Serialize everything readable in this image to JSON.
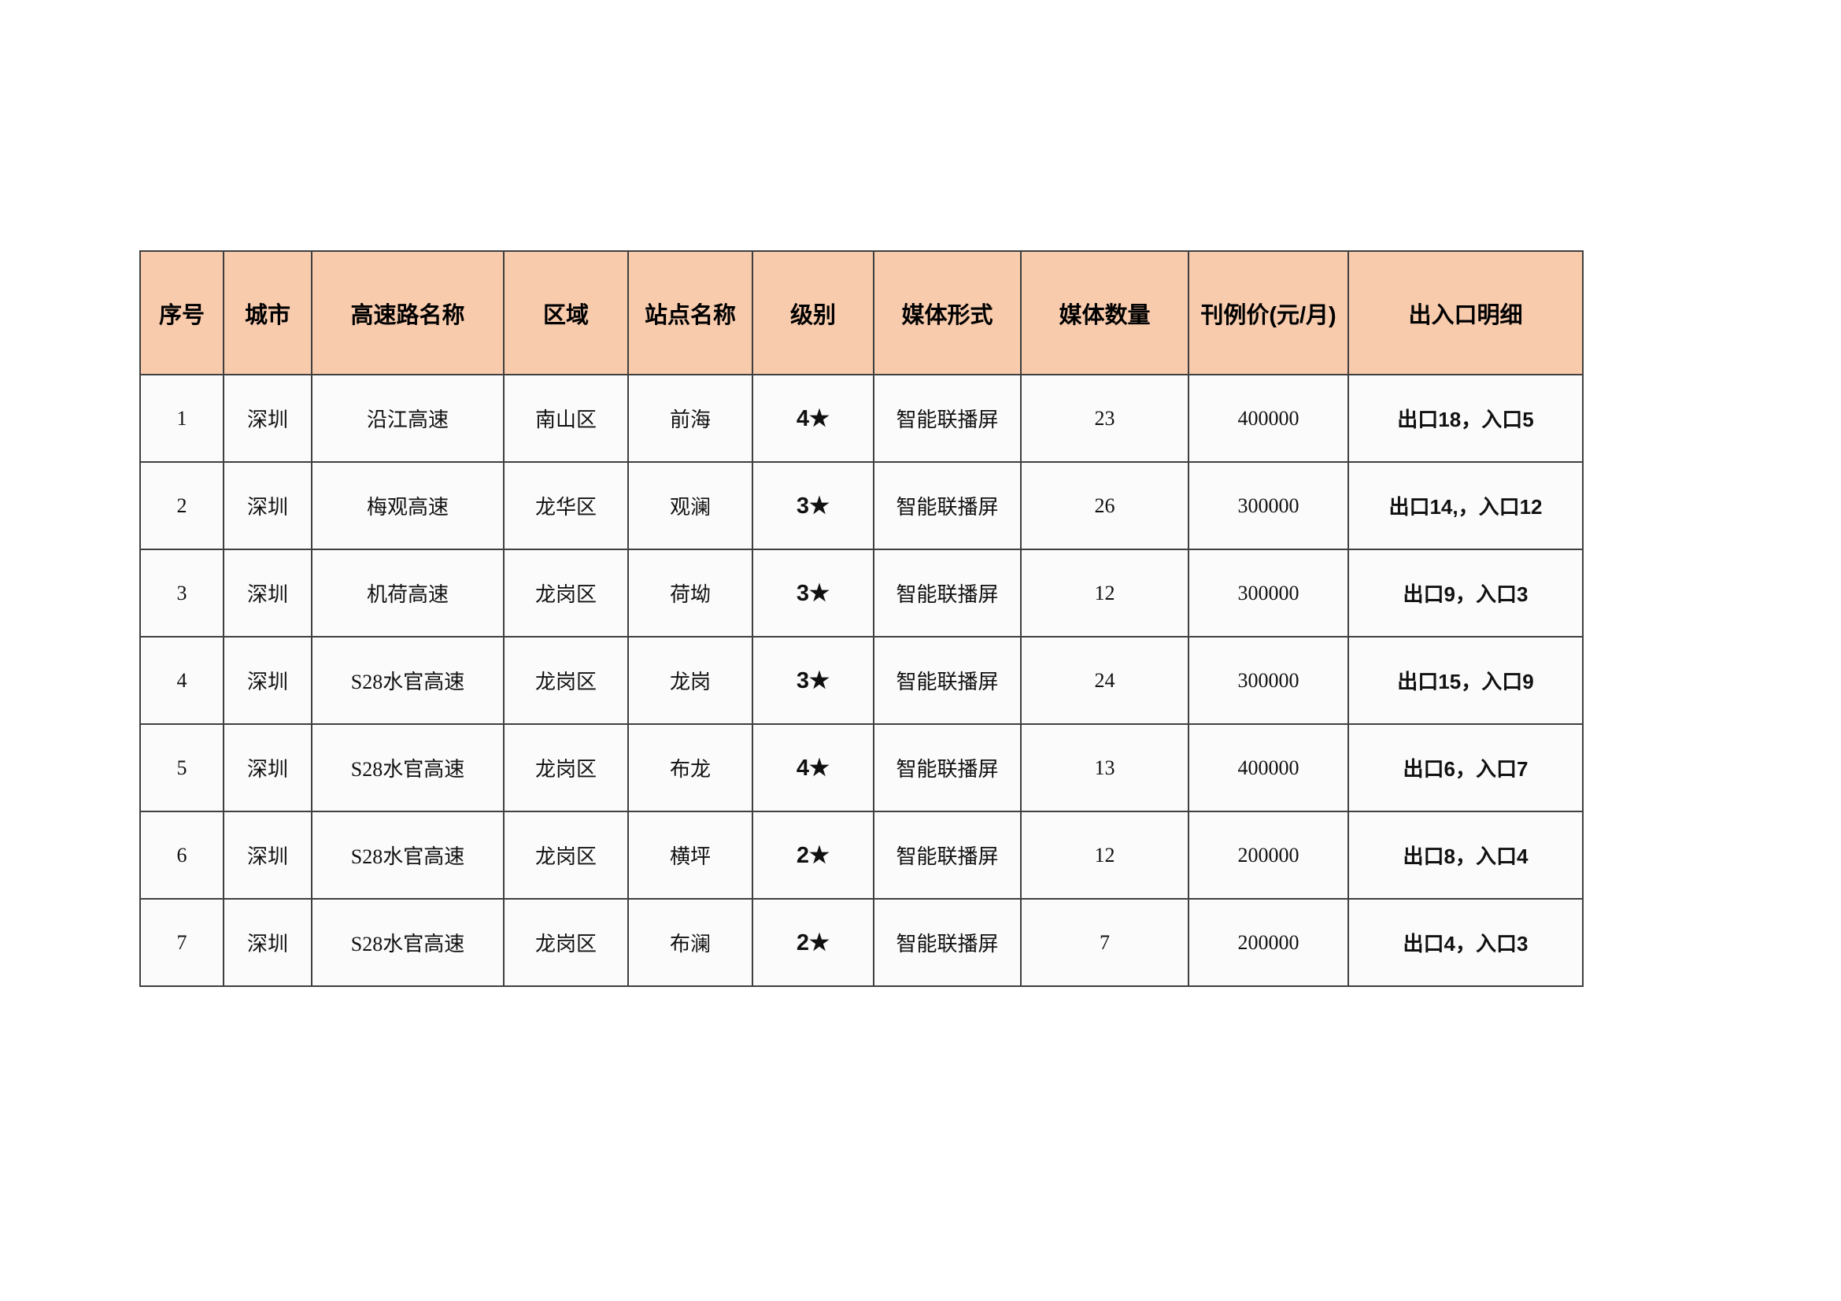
{
  "table": {
    "header_bg": "#F8CBAD",
    "border_color": "#3f3f3f",
    "columns": [
      "序号",
      "城市",
      "高速路名称",
      "区域",
      "站点名称",
      "级别",
      "媒体形式",
      "媒体数量",
      "刊例价(元/月)",
      "出入口明细"
    ],
    "rows": [
      [
        "1",
        "深圳",
        "沿江高速",
        "南山区",
        "前海",
        "4★",
        "智能联播屏",
        "23",
        "400000",
        "出口18，入口5"
      ],
      [
        "2",
        "深圳",
        "梅观高速",
        "龙华区",
        "观澜",
        "3★",
        "智能联播屏",
        "26",
        "300000",
        "出口14,，入口12"
      ],
      [
        "3",
        "深圳",
        "机荷高速",
        "龙岗区",
        "荷坳",
        "3★",
        "智能联播屏",
        "12",
        "300000",
        "出口9，入口3"
      ],
      [
        "4",
        "深圳",
        "S28水官高速",
        "龙岗区",
        "龙岗",
        "3★",
        "智能联播屏",
        "24",
        "300000",
        "出口15，入口9"
      ],
      [
        "5",
        "深圳",
        "S28水官高速",
        "龙岗区",
        "布龙",
        "4★",
        "智能联播屏",
        "13",
        "400000",
        "出口6，入口7"
      ],
      [
        "6",
        "深圳",
        "S28水官高速",
        "龙岗区",
        "横坪",
        "2★",
        "智能联播屏",
        "12",
        "200000",
        "出口8，入口4"
      ],
      [
        "7",
        "深圳",
        "S28水官高速",
        "龙岗区",
        "布澜",
        "2★",
        "智能联播屏",
        "7",
        "200000",
        "出口4，入口3"
      ]
    ]
  }
}
